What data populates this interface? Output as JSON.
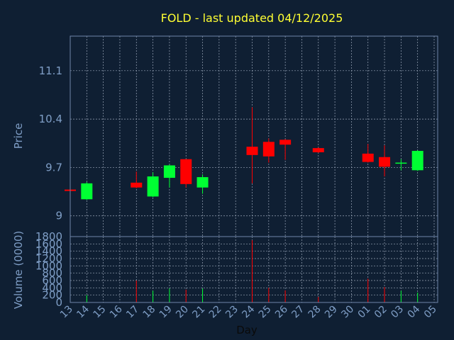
{
  "title": "FOLD - last updated 04/12/2025",
  "colors": {
    "background": "#0f1f33",
    "frame": "#6f86a8",
    "grid": "#9aa6b8",
    "text": "#7f9ec6",
    "title": "#ffff33",
    "up": "#00ff33",
    "down": "#ff0000"
  },
  "chart_data": {
    "type": "candlestick",
    "title": "FOLD - last updated 04/12/2025",
    "xlabel": "Day",
    "x_ticks": [
      "13",
      "14",
      "15",
      "16",
      "17",
      "18",
      "19",
      "20",
      "21",
      "22",
      "23",
      "24",
      "25",
      "26",
      "27",
      "28",
      "29",
      "30",
      "01",
      "02",
      "03",
      "04",
      "05"
    ],
    "price_panel": {
      "ylabel": "Price",
      "y_ticks": [
        9,
        9.7,
        10.4,
        11.1
      ],
      "ylim": [
        8.7,
        11.6
      ],
      "grid": true
    },
    "volume_panel": {
      "ylabel": "Volume (0000)",
      "y_ticks": [
        0,
        200,
        400,
        600,
        800,
        1000,
        1200,
        1400,
        1600,
        1800
      ],
      "ylim": [
        0,
        1800
      ],
      "grid": true
    },
    "candles": [
      {
        "day": "13",
        "open": 9.38,
        "high": 9.4,
        "low": 9.36,
        "close": 9.36,
        "volume": 0
      },
      {
        "day": "14",
        "open": 9.24,
        "high": 9.49,
        "low": 9.23,
        "close": 9.47,
        "volume": 200
      },
      {
        "day": "17",
        "open": 9.48,
        "high": 9.64,
        "low": 9.4,
        "close": 9.41,
        "volume": 600
      },
      {
        "day": "18",
        "open": 9.28,
        "high": 9.63,
        "low": 9.27,
        "close": 9.57,
        "volume": 320
      },
      {
        "day": "19",
        "open": 9.55,
        "high": 9.74,
        "low": 9.41,
        "close": 9.73,
        "volume": 380
      },
      {
        "day": "20",
        "open": 9.82,
        "high": 9.82,
        "low": 9.41,
        "close": 9.46,
        "volume": 350
      },
      {
        "day": "21",
        "open": 9.41,
        "high": 9.6,
        "low": 9.32,
        "close": 9.56,
        "volume": 380
      },
      {
        "day": "24",
        "open": 10.0,
        "high": 10.57,
        "low": 9.47,
        "close": 9.88,
        "volume": 1700
      },
      {
        "day": "25",
        "open": 10.07,
        "high": 10.12,
        "low": 9.77,
        "close": 9.86,
        "volume": 400
      },
      {
        "day": "26",
        "open": 10.1,
        "high": 10.11,
        "low": 9.81,
        "close": 10.03,
        "volume": 330
      },
      {
        "day": "28",
        "open": 9.98,
        "high": 9.99,
        "low": 9.91,
        "close": 9.92,
        "volume": 150
      },
      {
        "day": "01",
        "open": 9.9,
        "high": 10.04,
        "low": 9.77,
        "close": 9.78,
        "volume": 650
      },
      {
        "day": "02",
        "open": 9.85,
        "high": 10.02,
        "low": 9.57,
        "close": 9.71,
        "volume": 420
      },
      {
        "day": "03",
        "open": 9.76,
        "high": 9.82,
        "low": 9.66,
        "close": 9.77,
        "volume": 320
      },
      {
        "day": "04",
        "open": 9.66,
        "high": 9.95,
        "low": 9.65,
        "close": 9.94,
        "volume": 270
      }
    ]
  }
}
